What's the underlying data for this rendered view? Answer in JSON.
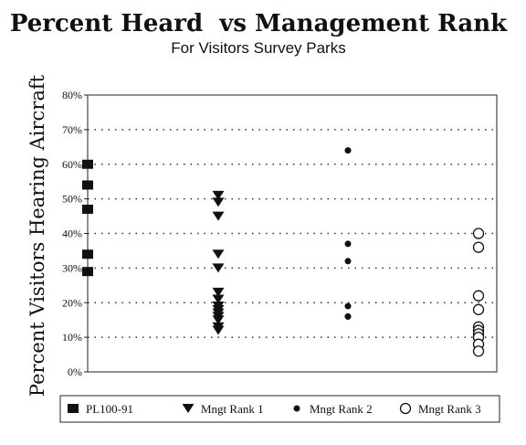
{
  "chart_data": {
    "type": "scatter",
    "title": "Percent Heard  vs Management Rank",
    "subtitle": "For Visitors Survey Parks",
    "ylabel": "Percent Visitors Hearing Aircraft",
    "xlabel": "",
    "ylim": [
      0,
      80
    ],
    "y_ticks": [
      "0%",
      "10%",
      "20%",
      "30%",
      "40%",
      "50%",
      "60%",
      "70%",
      "80%"
    ],
    "grid": "horizontal-dotted",
    "legend_placement": "bottom",
    "series": [
      {
        "name": "PL100-91",
        "marker": "square-filled",
        "x": 1,
        "values": [
          60,
          54,
          47,
          34,
          29
        ]
      },
      {
        "name": "Mngt Rank 1",
        "marker": "triangle-down-filled",
        "x": 2,
        "values": [
          51,
          49,
          45,
          34,
          30,
          23,
          21,
          19,
          18,
          17,
          16,
          15,
          13,
          12
        ]
      },
      {
        "name": "Mngt Rank 2",
        "marker": "dot-filled",
        "x": 3,
        "values": [
          64,
          37,
          32,
          19,
          16,
          16
        ]
      },
      {
        "name": "Mngt Rank 3",
        "marker": "circle-open",
        "x": 4,
        "values": [
          40,
          36,
          22,
          18,
          13,
          12,
          11,
          10,
          8,
          6
        ]
      }
    ]
  }
}
